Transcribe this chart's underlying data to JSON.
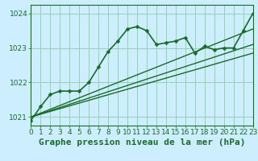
{
  "title": "Graphe pression niveau de la mer (hPa)",
  "bg_color": "#cceeff",
  "grid_color": "#99ccbb",
  "line_color": "#1a6b2a",
  "xlim": [
    0,
    23
  ],
  "ylim": [
    1020.75,
    1024.25
  ],
  "yticks": [
    1021,
    1022,
    1023,
    1024
  ],
  "xticks": [
    0,
    1,
    2,
    3,
    4,
    5,
    6,
    7,
    8,
    9,
    10,
    11,
    12,
    13,
    14,
    15,
    16,
    17,
    18,
    19,
    20,
    21,
    22,
    23
  ],
  "series": [
    {
      "x": [
        0,
        1,
        2,
        3,
        4,
        5,
        6,
        7,
        8,
        9,
        10,
        11,
        12,
        13,
        14,
        15,
        16,
        17,
        18,
        19,
        20,
        21,
        22,
        23
      ],
      "y": [
        1020.9,
        1021.3,
        1021.65,
        1021.75,
        1021.75,
        1021.75,
        1022.0,
        1022.45,
        1022.9,
        1023.2,
        1023.55,
        1023.62,
        1023.5,
        1023.1,
        1023.15,
        1023.2,
        1023.3,
        1022.85,
        1023.05,
        1022.95,
        1023.0,
        1023.0,
        1023.5,
        1024.0
      ],
      "lw": 1.2,
      "marker": true
    },
    {
      "x": [
        0,
        23
      ],
      "y": [
        1021.0,
        1023.55
      ],
      "lw": 1.0,
      "marker": false
    },
    {
      "x": [
        0,
        23
      ],
      "y": [
        1021.0,
        1023.1
      ],
      "lw": 1.0,
      "marker": false
    },
    {
      "x": [
        0,
        23
      ],
      "y": [
        1021.0,
        1022.85
      ],
      "lw": 1.0,
      "marker": false
    }
  ],
  "title_fontsize": 8,
  "tick_fontsize": 6.5,
  "marker_style": "D",
  "markersize": 2.5
}
